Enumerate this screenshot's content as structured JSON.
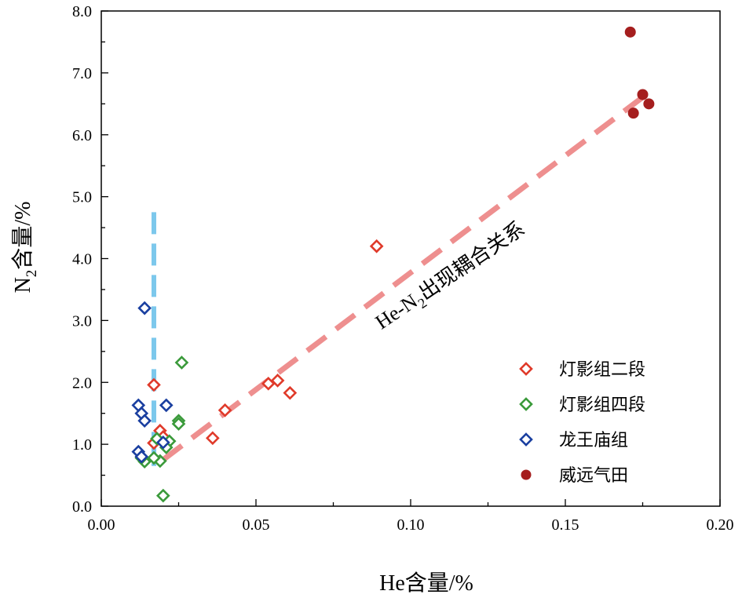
{
  "chart_data": {
    "type": "scatter",
    "xlabel": "He含量/%",
    "ylabel_main": "N",
    "ylabel_sub": "2",
    "ylabel_rest": "含量/%",
    "xlim": [
      0,
      0.2
    ],
    "ylim": [
      0,
      8
    ],
    "x_ticks": [
      "0.00",
      "0.05",
      "0.10",
      "0.15",
      "0.20"
    ],
    "y_ticks": [
      "0.0",
      "1.0",
      "2.0",
      "3.0",
      "4.0",
      "5.0",
      "6.0",
      "7.0",
      "8.0"
    ],
    "legend_position": "lower-right",
    "series": [
      {
        "name": "灯影组二段",
        "marker": "diamond-open",
        "color": "#e03a2a",
        "points": [
          [
            0.017,
            1.96
          ],
          [
            0.019,
            1.22
          ],
          [
            0.02,
            1.12
          ],
          [
            0.017,
            1.02
          ],
          [
            0.036,
            1.1
          ],
          [
            0.04,
            1.55
          ],
          [
            0.054,
            1.98
          ],
          [
            0.057,
            2.03
          ],
          [
            0.061,
            1.83
          ],
          [
            0.089,
            4.2
          ]
        ]
      },
      {
        "name": "灯影组四段",
        "marker": "diamond-open",
        "color": "#3a9a3a",
        "points": [
          [
            0.026,
            2.32
          ],
          [
            0.025,
            1.38
          ],
          [
            0.025,
            1.33
          ],
          [
            0.022,
            1.05
          ],
          [
            0.018,
            1.09
          ],
          [
            0.021,
            0.95
          ],
          [
            0.019,
            0.73
          ],
          [
            0.014,
            0.72
          ],
          [
            0.013,
            0.78
          ],
          [
            0.02,
            0.17
          ],
          [
            0.017,
            0.78
          ]
        ]
      },
      {
        "name": "龙王庙组",
        "marker": "diamond-open",
        "color": "#1a3fa0",
        "points": [
          [
            0.014,
            3.2
          ],
          [
            0.012,
            1.63
          ],
          [
            0.021,
            1.63
          ],
          [
            0.013,
            1.5
          ],
          [
            0.014,
            1.38
          ],
          [
            0.02,
            1.03
          ],
          [
            0.012,
            0.88
          ],
          [
            0.013,
            0.8
          ]
        ]
      },
      {
        "name": "威远气田",
        "marker": "circle-filled",
        "color": "#a51e1e",
        "points": [
          [
            0.171,
            7.66
          ],
          [
            0.175,
            6.65
          ],
          [
            0.177,
            6.5
          ],
          [
            0.172,
            6.35
          ]
        ]
      }
    ],
    "trend_lines": [
      {
        "color": "#ee8f8f",
        "from": [
          0.02,
          0.75
        ],
        "to": [
          0.178,
          6.72
        ]
      },
      {
        "color": "#7cc8ec",
        "from": [
          0.017,
          4.75
        ],
        "to": [
          0.017,
          0.65
        ]
      }
    ],
    "annotation": {
      "text_main": "He-N",
      "text_sub": "2",
      "text_rest": "出现耦合关系"
    }
  }
}
